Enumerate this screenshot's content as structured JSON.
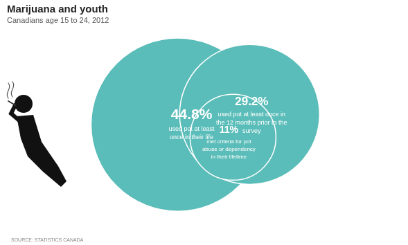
{
  "chart_data": {
    "type": "bubble",
    "title": "Marijuana and youth",
    "subtitle": "Canadians age 15 to 24, 2012",
    "source": "SOURCE: STATISTICS CANADA",
    "categories": [
      "used pot at least once in their life",
      "used pot at least once in the 12 months prior to the survey",
      "met criteria for pot abuse or dependency in their lifetime"
    ],
    "values": [
      44.8,
      29.2,
      11
    ],
    "value_labels": [
      "44.8%",
      "29.2%",
      "11%"
    ],
    "data_labels": true,
    "color": "#5bbdb9",
    "tick_labels": false,
    "grid": false
  }
}
